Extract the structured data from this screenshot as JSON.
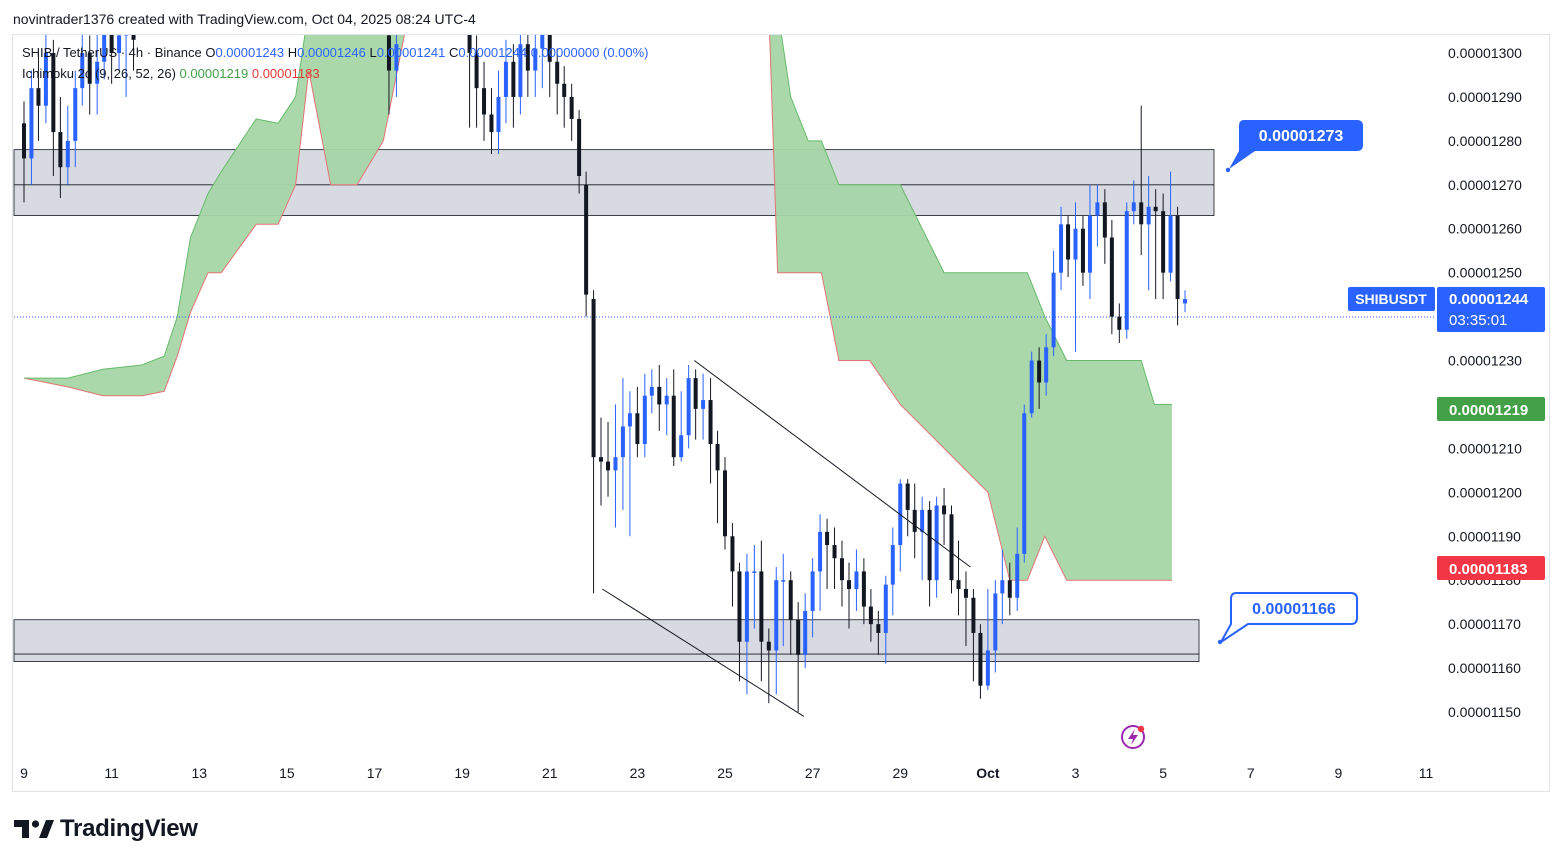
{
  "header": {
    "credit": "novintrader1376 created with TradingView.com, Oct 04, 2025 08:24 UTC-4"
  },
  "legend": {
    "symbol": "SHIB / TetherUS · 4h · Binance",
    "open_label": "O",
    "open_value": "0.00001243",
    "high_label": "H",
    "high_value": "0.00001246",
    "low_label": "L",
    "low_value": "0.00001241",
    "close_label": "C",
    "close_value": "0.00001244",
    "change": "0.00000000 (0.00%)",
    "indicator": "Ichimoku 2c (9, 26, 52, 26)",
    "indicator_value_1": "0.00001219",
    "indicator_value_2": "0.00001183"
  },
  "price_tags": {
    "symbol": "SHIBUSDT",
    "last_price": "0.00001244",
    "countdown": "03:35:01",
    "span_a": "0.00001219",
    "span_b": "0.00001183"
  },
  "callouts": [
    {
      "text": "0.00001273",
      "style": "filled"
    },
    {
      "text": "0.00001166",
      "style": "outline"
    }
  ],
  "footer": {
    "brand": "TradingView"
  },
  "colors": {
    "up": "#2962ff",
    "down": "#131722",
    "cloud": "#a5d6a7",
    "cloud_border": "#e57373",
    "zone": "#d1d4dc",
    "tag_blue": "#2962ff",
    "tag_green": "#43a047",
    "tag_red": "#f23645"
  },
  "chart_data": {
    "type": "candlestick",
    "title": "",
    "xlabel": "",
    "ylabel": "",
    "ylim": [
      1.14e-05,
      1.31e-05
    ],
    "y_ticks": [
      "0.00001300",
      "0.00001290",
      "0.00001280",
      "0.00001270",
      "0.00001260",
      "0.00001250",
      "0.00001240",
      "0.00001230",
      "0.00001220",
      "0.00001210",
      "0.00001200",
      "0.00001190",
      "0.00001180",
      "0.00001170",
      "0.00001160",
      "0.00001150"
    ],
    "x_ticks": [
      "9",
      "11",
      "13",
      "15",
      "17",
      "19",
      "21",
      "23",
      "25",
      "27",
      "29",
      "Oct",
      "3",
      "5",
      "7",
      "9",
      "11"
    ],
    "x_day_range": [
      9,
      41
    ],
    "resistance_zone": [
      1.263e-05,
      1.278e-05
    ],
    "support_zone": [
      1.164e-05,
      1.171e-05
    ],
    "zone_mid_lines": [
      1.27e-05,
      1.16e-05
    ],
    "trendlines": [
      {
        "from": [
          24.3,
          1.23e-05
        ],
        "to": [
          30.6,
          1.183e-05
        ]
      },
      {
        "from": [
          22.2,
          1.178e-05
        ],
        "to": [
          26.8,
          1.149e-05
        ]
      }
    ],
    "cloud_segments": [
      {
        "x": [
          9.0,
          10.0,
          10.8,
          11.7,
          12.2,
          12.5,
          12.8,
          13.2,
          13.5,
          14.3,
          14.8,
          15.2,
          15.5,
          16.0,
          16.6,
          17.2,
          17.8
        ],
        "upper": [
          1.226e-05,
          1.226e-05,
          1.228e-05,
          1.229e-05,
          1.231e-05,
          1.24e-05,
          1.258e-05,
          1.268e-05,
          1.273e-05,
          1.285e-05,
          1.284e-05,
          1.29e-05,
          1.31e-05,
          1.31e-05,
          1.31e-05,
          1.31e-05,
          1.31e-05
        ],
        "lower": [
          1.226e-05,
          1.224e-05,
          1.222e-05,
          1.222e-05,
          1.223e-05,
          1.231e-05,
          1.241e-05,
          1.25e-05,
          1.25e-05,
          1.261e-05,
          1.261e-05,
          1.27e-05,
          1.296e-05,
          1.27e-05,
          1.27e-05,
          1.28e-05,
          1.31e-05
        ]
      },
      {
        "x": [
          26.0,
          26.2,
          26.5,
          26.9,
          27.2,
          27.6,
          28.3,
          29.0,
          30.0,
          31.0,
          31.5,
          31.9,
          32.3,
          32.8,
          33.2,
          33.7,
          34.5,
          34.8,
          35.2
        ],
        "upper": [
          1.31e-05,
          1.31e-05,
          1.29e-05,
          1.28e-05,
          1.28e-05,
          1.27e-05,
          1.27e-05,
          1.27e-05,
          1.25e-05,
          1.25e-05,
          1.25e-05,
          1.25e-05,
          1.24e-05,
          1.23e-05,
          1.23e-05,
          1.23e-05,
          1.23e-05,
          1.22e-05,
          1.22e-05
        ],
        "lower": [
          1.31e-05,
          1.25e-05,
          1.25e-05,
          1.25e-05,
          1.25e-05,
          1.23e-05,
          1.23e-05,
          1.22e-05,
          1.21e-05,
          1.2e-05,
          1.18e-05,
          1.18e-05,
          1.19e-05,
          1.18e-05,
          1.18e-05,
          1.18e-05,
          1.18e-05,
          1.18e-05,
          1.18e-05
        ]
      }
    ],
    "candles": [
      [
        9.0,
        1.284,
        1.276,
        1.289,
        1.266
      ],
      [
        9.17,
        1.276,
        1.292,
        1.296,
        1.27
      ],
      [
        9.33,
        1.292,
        1.288,
        1.3,
        1.28
      ],
      [
        9.5,
        1.288,
        1.3,
        1.305,
        1.284
      ],
      [
        9.67,
        1.3,
        1.282,
        1.303,
        1.272
      ],
      [
        9.83,
        1.282,
        1.274,
        1.29,
        1.267
      ],
      [
        10.0,
        1.274,
        1.28,
        1.288,
        1.27
      ],
      [
        10.17,
        1.28,
        1.292,
        1.296,
        1.274
      ],
      [
        10.33,
        1.292,
        1.3,
        1.306,
        1.288
      ],
      [
        10.5,
        1.3,
        1.293,
        1.304,
        1.286
      ],
      [
        10.67,
        1.293,
        1.298,
        1.305,
        1.286
      ],
      [
        10.83,
        1.298,
        1.306,
        1.309,
        1.294
      ],
      [
        11.0,
        1.306,
        1.3,
        1.309,
        1.293
      ],
      [
        11.17,
        1.3,
        1.304,
        1.308,
        1.296
      ],
      [
        11.33,
        1.304,
        1.308,
        1.309,
        1.29
      ],
      [
        11.5,
        1.308,
        1.303,
        1.309,
        1.296
      ],
      [
        17.33,
        1.304,
        1.296,
        1.309,
        1.286
      ],
      [
        17.5,
        1.296,
        1.302,
        1.307,
        1.29
      ],
      [
        19.17,
        1.306,
        1.3,
        1.309,
        1.283
      ],
      [
        19.33,
        1.3,
        1.292,
        1.304,
        1.283
      ],
      [
        19.5,
        1.292,
        1.286,
        1.298,
        1.28
      ],
      [
        19.67,
        1.286,
        1.282,
        1.292,
        1.277
      ],
      [
        19.83,
        1.282,
        1.29,
        1.296,
        1.277
      ],
      [
        20.0,
        1.29,
        1.298,
        1.303,
        1.284
      ],
      [
        20.17,
        1.298,
        1.29,
        1.302,
        1.283
      ],
      [
        20.33,
        1.29,
        1.302,
        1.306,
        1.286
      ],
      [
        20.5,
        1.302,
        1.296,
        1.307,
        1.29
      ],
      [
        20.67,
        1.296,
        1.301,
        1.306,
        1.29
      ],
      [
        20.83,
        1.301,
        1.306,
        1.309,
        1.292
      ],
      [
        21.0,
        1.306,
        1.298,
        1.309,
        1.29
      ],
      [
        21.17,
        1.298,
        1.293,
        1.301,
        1.286
      ],
      [
        21.33,
        1.293,
        1.29,
        1.297,
        1.283
      ],
      [
        21.5,
        1.29,
        1.285,
        1.293,
        1.28
      ],
      [
        21.67,
        1.285,
        1.272,
        1.287,
        1.268
      ],
      [
        21.83,
        1.27,
        1.245,
        1.273,
        1.24
      ],
      [
        22.0,
        1.244,
        1.208,
        1.246,
        1.177
      ],
      [
        22.17,
        1.208,
        1.207,
        1.217,
        1.197
      ],
      [
        22.33,
        1.207,
        1.205,
        1.216,
        1.199
      ],
      [
        22.5,
        1.205,
        1.208,
        1.22,
        1.192
      ],
      [
        22.67,
        1.208,
        1.215,
        1.226,
        1.196
      ],
      [
        22.83,
        1.215,
        1.218,
        1.223,
        1.19
      ],
      [
        23.0,
        1.218,
        1.211,
        1.224,
        1.208
      ],
      [
        23.17,
        1.211,
        1.222,
        1.227,
        1.208
      ],
      [
        23.33,
        1.222,
        1.224,
        1.228,
        1.218
      ],
      [
        23.5,
        1.224,
        1.22,
        1.229,
        1.214
      ],
      [
        23.67,
        1.22,
        1.222,
        1.226,
        1.213
      ],
      [
        23.83,
        1.222,
        1.208,
        1.228,
        1.206
      ],
      [
        24.0,
        1.208,
        1.213,
        1.223,
        1.207
      ],
      [
        24.17,
        1.213,
        1.226,
        1.229,
        1.21
      ],
      [
        24.33,
        1.226,
        1.219,
        1.228,
        1.212
      ],
      [
        24.5,
        1.219,
        1.221,
        1.227,
        1.212
      ],
      [
        24.67,
        1.221,
        1.211,
        1.226,
        1.202
      ],
      [
        24.83,
        1.211,
        1.205,
        1.214,
        1.193
      ],
      [
        25.0,
        1.205,
        1.19,
        1.208,
        1.187
      ],
      [
        25.17,
        1.19,
        1.182,
        1.193,
        1.174
      ],
      [
        25.33,
        1.182,
        1.166,
        1.184,
        1.157
      ],
      [
        25.5,
        1.166,
        1.182,
        1.186,
        1.154
      ],
      [
        25.67,
        1.182,
        1.182,
        1.188,
        1.169
      ],
      [
        25.83,
        1.182,
        1.166,
        1.189,
        1.157
      ],
      [
        26.0,
        1.166,
        1.164,
        1.169,
        1.152
      ],
      [
        26.17,
        1.164,
        1.18,
        1.183,
        1.154
      ],
      [
        26.33,
        1.18,
        1.18,
        1.186,
        1.165
      ],
      [
        26.5,
        1.18,
        1.171,
        1.182,
        1.163
      ],
      [
        26.67,
        1.171,
        1.163,
        1.175,
        1.15
      ],
      [
        26.83,
        1.163,
        1.173,
        1.177,
        1.16
      ],
      [
        27.0,
        1.173,
        1.182,
        1.185,
        1.167
      ],
      [
        27.17,
        1.182,
        1.191,
        1.195,
        1.173
      ],
      [
        27.33,
        1.191,
        1.188,
        1.194,
        1.178
      ],
      [
        27.5,
        1.188,
        1.185,
        1.192,
        1.178
      ],
      [
        27.67,
        1.185,
        1.18,
        1.189,
        1.174
      ],
      [
        27.83,
        1.18,
        1.178,
        1.184,
        1.169
      ],
      [
        28.0,
        1.178,
        1.182,
        1.187,
        1.173
      ],
      [
        28.17,
        1.182,
        1.174,
        1.185,
        1.17
      ],
      [
        28.33,
        1.174,
        1.17,
        1.178,
        1.166
      ],
      [
        28.5,
        1.17,
        1.168,
        1.173,
        1.163
      ],
      [
        28.67,
        1.168,
        1.179,
        1.181,
        1.161
      ],
      [
        28.83,
        1.179,
        1.188,
        1.192,
        1.172
      ],
      [
        29.0,
        1.188,
        1.202,
        1.203,
        1.182
      ],
      [
        29.17,
        1.202,
        1.196,
        1.203,
        1.19
      ],
      [
        29.33,
        1.196,
        1.191,
        1.202,
        1.185
      ],
      [
        29.5,
        1.191,
        1.196,
        1.199,
        1.18
      ],
      [
        29.67,
        1.196,
        1.18,
        1.198,
        1.174
      ],
      [
        29.83,
        1.18,
        1.197,
        1.199,
        1.176
      ],
      [
        30.0,
        1.197,
        1.195,
        1.201,
        1.188
      ],
      [
        30.17,
        1.195,
        1.18,
        1.197,
        1.177
      ],
      [
        30.33,
        1.18,
        1.178,
        1.189,
        1.172
      ],
      [
        30.5,
        1.178,
        1.176,
        1.182,
        1.165
      ],
      [
        30.67,
        1.176,
        1.168,
        1.178,
        1.157
      ],
      [
        30.83,
        1.168,
        1.156,
        1.17,
        1.153
      ],
      [
        31.0,
        1.156,
        1.164,
        1.178,
        1.155
      ],
      [
        31.17,
        1.164,
        1.177,
        1.18,
        1.159
      ],
      [
        31.33,
        1.177,
        1.18,
        1.187,
        1.17
      ],
      [
        31.5,
        1.18,
        1.176,
        1.184,
        1.172
      ],
      [
        31.67,
        1.176,
        1.186,
        1.192,
        1.173
      ],
      [
        31.83,
        1.186,
        1.218,
        1.22,
        1.184
      ],
      [
        32.0,
        1.218,
        1.23,
        1.232,
        1.217
      ],
      [
        32.17,
        1.23,
        1.225,
        1.233,
        1.219
      ],
      [
        32.33,
        1.225,
        1.233,
        1.236,
        1.222
      ],
      [
        32.5,
        1.233,
        1.25,
        1.255,
        1.231
      ],
      [
        32.67,
        1.25,
        1.261,
        1.265,
        1.246
      ],
      [
        32.83,
        1.261,
        1.253,
        1.263,
        1.249
      ],
      [
        33.0,
        1.253,
        1.26,
        1.266,
        1.232
      ],
      [
        33.17,
        1.26,
        1.25,
        1.263,
        1.247
      ],
      [
        33.33,
        1.25,
        1.263,
        1.27,
        1.244
      ],
      [
        33.5,
        1.263,
        1.266,
        1.27,
        1.256
      ],
      [
        33.67,
        1.266,
        1.258,
        1.269,
        1.252
      ],
      [
        33.83,
        1.258,
        1.24,
        1.262,
        1.236
      ],
      [
        34.0,
        1.24,
        1.237,
        1.243,
        1.234
      ],
      [
        34.17,
        1.237,
        1.264,
        1.266,
        1.235
      ],
      [
        34.33,
        1.264,
        1.266,
        1.271,
        1.261
      ],
      [
        34.5,
        1.266,
        1.261,
        1.288,
        1.254
      ],
      [
        34.67,
        1.261,
        1.265,
        1.272,
        1.246
      ],
      [
        34.83,
        1.265,
        1.264,
        1.269,
        1.244
      ],
      [
        35.0,
        1.264,
        1.25,
        1.268,
        1.244
      ],
      [
        35.17,
        1.25,
        1.263,
        1.273,
        1.248
      ],
      [
        35.33,
        1.263,
        1.244,
        1.265,
        1.238
      ],
      [
        35.5,
        1.243,
        1.244,
        1.246,
        1.241
      ]
    ]
  }
}
